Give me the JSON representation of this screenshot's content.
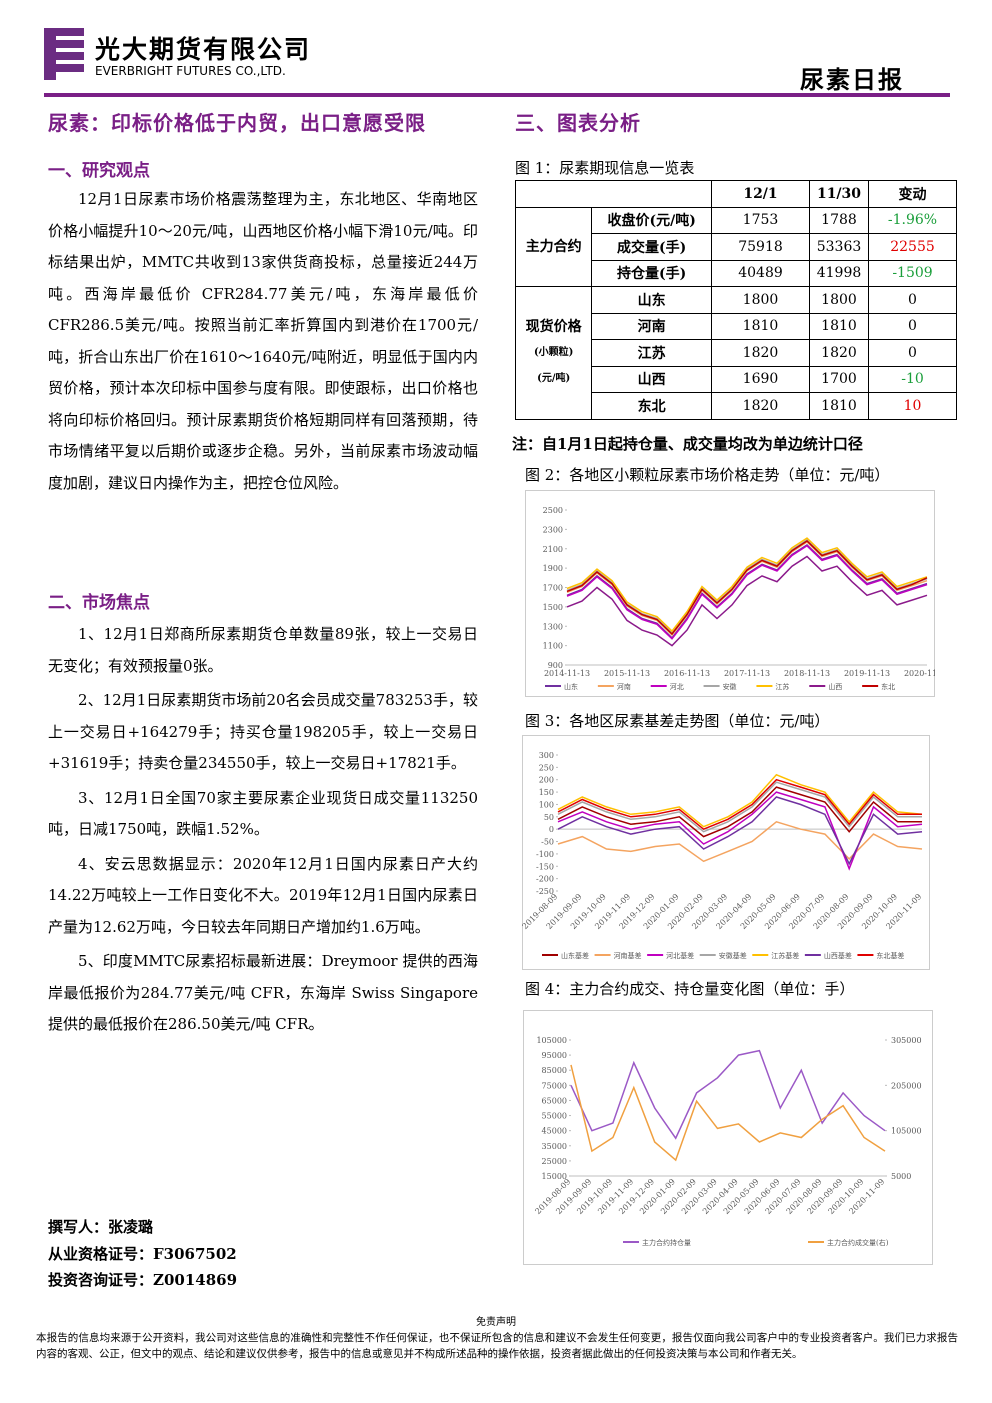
{
  "header": {
    "company_cn": "光大期货有限公司",
    "company_en": "EVERBRIGHT FUTURES CO.,LTD.",
    "report": "尿素日报"
  },
  "left": {
    "title": "尿素：印标价格低于内贸，出口意愿受限",
    "sections": [
      {
        "heading": "一、研究观点",
        "paragraphs": [
          "12月1日尿素市场价格震荡整理为主，东北地区、华南地区价格小幅提升10～20元/吨，山西地区价格小幅下滑10元/吨。印标结果出炉，MMTC共收到13家供货商投标，总量接近244万吨。西海岸最低价 CFR284.77美元/吨，东海岸最低价CFR286.5美元/吨。按照当前汇率折算国内到港价在1700元/吨，折合山东出厂价在1610～1640元/吨附近，明显低于国内内贸价格，预计本次印标中国参与度有限。即使跟标，出口价格也将向印标价格回归。预计尿素期货价格短期同样有回落预期，待市场情绪平复以后期价或逐步企稳。另外，当前尿素市场波动幅度加剧，建议日内操作为主，把控仓位风险。"
        ]
      },
      {
        "heading": "二、市场焦点",
        "paragraphs": [
          "1、12月1日郑商所尿素期货仓单数量89张，较上一交易日无变化；有效预报量0张。",
          "2、12月1日尿素期货市场前20名会员成交量783253手，较上一交易日+164279手；持买仓量198205手，较上一交易日+31619手；持卖仓量234550手，较上一交易日+17821手。",
          "3、12月1日全国70家主要尿素企业现货日成交量113250吨，日减1750吨，跌幅1.52%。",
          "4、安云思数据显示：2020年12月1日国内尿素日产大约14.22万吨较上一工作日变化不大。2019年12月1日国内尿素日产量为12.62万吨，今日较去年同期日产增加约1.6万吨。",
          "5、印度MMTC尿素招标最新进展：Dreymoor 提供的西海岸最低报价为284.77美元/吨 CFR，东海岸 Swiss Singapore提供的最低报价在286.50美元/吨 CFR。"
        ]
      }
    ],
    "authors": [
      "撰写人：张凌璐",
      "从业资格证号：F3067502",
      "投资咨询证号：Z0014869"
    ]
  },
  "right": {
    "heading": "三、图表分析",
    "table_title": "图 1：尿素期现信息一览表",
    "table": {
      "header": [
        "12/1",
        "11/30",
        "变动"
      ],
      "groups": [
        {
          "label": [
            "主力合约"
          ],
          "rows": [
            {
              "name": "收盘价(元/吨)",
              "cells": [
                "1753",
                "1788",
                "-1.96%"
              ]
            },
            {
              "name": "成交量(手)",
              "cells": [
                "75918",
                "53363",
                "22555"
              ]
            },
            {
              "name": "持仓量(手)",
              "cells": [
                "40489",
                "41998",
                "-1509"
              ]
            }
          ]
        },
        {
          "label": [
            "现货价格",
            "(小颗粒)",
            "(元/吨)"
          ],
          "rows": [
            {
              "name": "山东",
              "cells": [
                "1800",
                "1800",
                "0"
              ]
            },
            {
              "name": "河南",
              "cells": [
                "1810",
                "1810",
                "0"
              ]
            },
            {
              "name": "江苏",
              "cells": [
                "1820",
                "1820",
                "0"
              ]
            },
            {
              "name": "山西",
              "cells": [
                "1690",
                "1700",
                "-10"
              ]
            },
            {
              "name": "东北",
              "cells": [
                "1820",
                "1810",
                "10"
              ]
            }
          ]
        }
      ]
    },
    "note": "注：自1月1日起持仓量、成交量均改为单边统计口径"
  },
  "chart_data": [
    {
      "type": "line",
      "title": "图 2：各地区小颗粒尿素市场价格走势（单位：元/吨）",
      "categories": [
        "2014-11-13",
        null,
        null,
        null,
        "2015-11-13",
        null,
        null,
        null,
        "2016-11-13",
        null,
        null,
        null,
        "2017-11-13",
        null,
        null,
        null,
        "2018-11-13",
        null,
        null,
        null,
        "2019-11-13",
        null,
        null,
        null,
        "2020-11-13"
      ],
      "ylim": [
        900,
        2500
      ],
      "yticks": [
        900,
        1100,
        1300,
        1500,
        1700,
        1900,
        2100,
        2300,
        2500
      ],
      "series": [
        {
          "name": "山东",
          "color": "#7030a0",
          "values": [
            1620,
            1680,
            1820,
            1700,
            1480,
            1380,
            1330,
            1180,
            1380,
            1640,
            1500,
            1640,
            1840,
            1940,
            1880,
            2040,
            2140,
            1990,
            2040,
            1880,
            1740,
            1790,
            1640,
            1690,
            1740
          ]
        },
        {
          "name": "河南",
          "color": "#f4a460",
          "values": [
            1650,
            1710,
            1850,
            1730,
            1510,
            1410,
            1360,
            1210,
            1410,
            1670,
            1530,
            1670,
            1870,
            1970,
            1910,
            2070,
            2170,
            2020,
            2070,
            1910,
            1770,
            1820,
            1670,
            1720,
            1770
          ]
        },
        {
          "name": "河北",
          "color": "#c000c0",
          "values": [
            1610,
            1670,
            1810,
            1690,
            1470,
            1370,
            1320,
            1170,
            1370,
            1630,
            1490,
            1630,
            1830,
            1930,
            1870,
            2030,
            2130,
            1980,
            2030,
            1870,
            1730,
            1780,
            1630,
            1680,
            1730
          ]
        },
        {
          "name": "安徽",
          "color": "#a6a6a6",
          "values": [
            1670,
            1730,
            1870,
            1750,
            1530,
            1430,
            1380,
            1230,
            1430,
            1690,
            1550,
            1690,
            1890,
            1990,
            1930,
            2090,
            2190,
            2040,
            2090,
            1930,
            1790,
            1840,
            1690,
            1740,
            1790
          ]
        },
        {
          "name": "江苏",
          "color": "#ffc000",
          "values": [
            1690,
            1750,
            1890,
            1770,
            1550,
            1450,
            1400,
            1250,
            1450,
            1710,
            1570,
            1710,
            1910,
            2010,
            1950,
            2110,
            2210,
            2060,
            2110,
            1950,
            1810,
            1860,
            1710,
            1760,
            1810
          ]
        },
        {
          "name": "山西",
          "color": "#8b1a8b",
          "values": [
            1500,
            1560,
            1700,
            1580,
            1360,
            1260,
            1210,
            1100,
            1260,
            1520,
            1380,
            1520,
            1720,
            1820,
            1760,
            1920,
            2020,
            1870,
            1920,
            1760,
            1620,
            1670,
            1520,
            1570,
            1620
          ]
        },
        {
          "name": "东北",
          "color": "#c00000",
          "values": [
            1660,
            1720,
            1860,
            1740,
            1520,
            1420,
            1370,
            1220,
            1420,
            1680,
            1540,
            1680,
            1880,
            1980,
            1920,
            2080,
            2180,
            2030,
            2080,
            1920,
            1780,
            1830,
            1680,
            1730,
            1800
          ]
        }
      ]
    },
    {
      "type": "line",
      "title": "图 3：各地区尿素基差走势图（单位：元/吨）",
      "categories": [
        "2019-08-09",
        "2019-09-09",
        "2019-10-09",
        "2019-11-09",
        "2019-12-09",
        "2020-01-09",
        "2020-02-09",
        "2020-03-09",
        "2020-04-09",
        "2020-05-09",
        "2020-06-09",
        "2020-07-09",
        "2020-08-09",
        "2020-09-09",
        "2020-10-09",
        "2020-11-09"
      ],
      "ylim": [
        -250,
        300
      ],
      "yticks": [
        -250,
        -200,
        -150,
        -100,
        -50,
        0,
        50,
        100,
        150,
        200,
        250,
        300
      ],
      "series": [
        {
          "name": "山东基差",
          "color": "#a00000",
          "values": [
            40,
            90,
            50,
            20,
            30,
            50,
            -30,
            10,
            70,
            170,
            140,
            110,
            -10,
            110,
            30,
            30
          ]
        },
        {
          "name": "河南基差",
          "color": "#f4a460",
          "values": [
            -60,
            -30,
            -80,
            -90,
            -70,
            -60,
            -130,
            -90,
            -50,
            30,
            0,
            -20,
            -120,
            -20,
            -70,
            -80
          ]
        },
        {
          "name": "河北基差",
          "color": "#c000c0",
          "values": [
            30,
            70,
            30,
            0,
            20,
            30,
            -60,
            -10,
            60,
            150,
            120,
            90,
            -160,
            90,
            10,
            20
          ]
        },
        {
          "name": "安徽基差",
          "color": "#a6a6a6",
          "values": [
            60,
            110,
            70,
            40,
            50,
            70,
            -10,
            30,
            90,
            190,
            160,
            130,
            10,
            130,
            50,
            50
          ]
        },
        {
          "name": "江苏基差",
          "color": "#ffc000",
          "values": [
            80,
            130,
            90,
            60,
            70,
            90,
            10,
            50,
            110,
            220,
            180,
            150,
            30,
            150,
            70,
            60
          ]
        },
        {
          "name": "山西基差",
          "color": "#7030a0",
          "values": [
            0,
            50,
            10,
            -20,
            0,
            10,
            -80,
            -30,
            30,
            130,
            100,
            60,
            -140,
            60,
            -20,
            -10
          ]
        },
        {
          "name": "东北基差",
          "color": "#e00000",
          "values": [
            70,
            120,
            80,
            50,
            60,
            80,
            0,
            40,
            100,
            200,
            170,
            140,
            20,
            140,
            60,
            60
          ]
        }
      ]
    },
    {
      "type": "line",
      "title": "图 4：主力合约成交、持仓量变化图（单位：手）",
      "categories": [
        "2019-08-09",
        "2019-09-09",
        "2019-10-09",
        "2019-11-09",
        "2019-12-09",
        "2020-01-09",
        "2020-02-09",
        "2020-03-09",
        "2020-04-09",
        "2020-05-09",
        "2020-06-09",
        "2020-07-09",
        "2020-08-09",
        "2020-09-09",
        "2020-10-09",
        "2020-11-09"
      ],
      "ylim": [
        15000,
        105000
      ],
      "yticks": [
        15000,
        25000,
        35000,
        45000,
        55000,
        65000,
        75000,
        85000,
        95000,
        105000
      ],
      "y2lim": [
        5000,
        305000
      ],
      "y2ticks": [
        5000,
        105000,
        205000,
        305000
      ],
      "series": [
        {
          "name": "主力合约持仓量",
          "color": "#9b59c6",
          "values": [
            75000,
            45000,
            50000,
            90000,
            60000,
            40000,
            70000,
            80000,
            95000,
            98000,
            60000,
            85000,
            50000,
            70000,
            55000,
            45000
          ]
        },
        {
          "name": "主力合约成交量(右)",
          "color": "#f0a040",
          "axis": "y2",
          "values": [
            250000,
            60000,
            90000,
            200000,
            80000,
            40000,
            170000,
            110000,
            120000,
            80000,
            100000,
            90000,
            130000,
            160000,
            90000,
            60000
          ]
        }
      ]
    }
  ],
  "footer": {
    "title": "免责声明",
    "text": "本报告的信息均来源于公开资料，我公司对这些信息的准确性和完整性不作任何保证，也不保证所包含的信息和建议不会发生任何变更，报告仅面向我公司客户中的专业投资者客户。我们已力求报告内容的客观、公正，但文中的观点、结论和建议仅供参考，报告中的信息或意见并不构成所述品种的操作依据，投资者据此做出的任何投资决策与本公司和作者无关。"
  }
}
